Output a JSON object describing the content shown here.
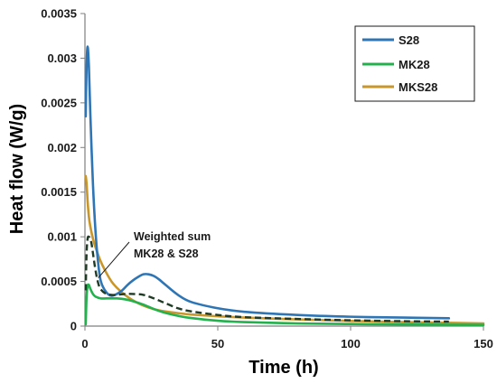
{
  "chart_data": {
    "type": "line",
    "xlabel": "Time (h)",
    "ylabel": "Heat flow (W/g)",
    "xlim": [
      0,
      150
    ],
    "ylim": [
      0,
      0.0035
    ],
    "x_ticks": [
      0,
      50,
      100,
      150
    ],
    "y_ticks": [
      0,
      0.0005,
      0.001,
      0.0015,
      0.002,
      0.0025,
      0.003,
      0.0035
    ],
    "x_tick_labels": [
      "0",
      "50",
      "100",
      "150"
    ],
    "y_tick_labels": [
      "0",
      "0.0005",
      "0.001",
      "0.0015",
      "0.002",
      "0.0025",
      "0.003",
      "0.0035"
    ],
    "grid": false,
    "legend_position": "top-right",
    "series": [
      {
        "name": "S28",
        "color": "#2e75b6",
        "dash": "solid",
        "x": [
          0.3,
          0.6,
          1,
          1.5,
          2,
          3,
          4,
          5,
          6,
          8,
          10,
          12,
          14,
          16,
          18,
          20,
          22,
          24,
          26,
          28,
          30,
          35,
          40,
          50,
          60,
          80,
          100,
          120,
          137
        ],
        "y": [
          0.00235,
          0.0029,
          0.00313,
          0.0029,
          0.0024,
          0.0016,
          0.00105,
          0.0007,
          0.0005,
          0.00038,
          0.00034,
          0.00036,
          0.0004,
          0.00046,
          0.00051,
          0.00055,
          0.00058,
          0.00058,
          0.00056,
          0.00052,
          0.00047,
          0.00035,
          0.00027,
          0.0002,
          0.00016,
          0.000125,
          0.000105,
          9.5e-05,
          8.8e-05
        ]
      },
      {
        "name": "MK28",
        "color": "#22b14c",
        "dash": "solid",
        "x": [
          0.3,
          0.6,
          1,
          1.5,
          2,
          3,
          4,
          6,
          8,
          10,
          12,
          15,
          18,
          22,
          26,
          30,
          35,
          40,
          50,
          60,
          80,
          100,
          120,
          150
        ],
        "y": [
          2e-05,
          0.00032,
          0.00045,
          0.00046,
          0.00042,
          0.00036,
          0.00033,
          0.00031,
          0.00031,
          0.00031,
          0.00031,
          0.0003,
          0.00028,
          0.00024,
          0.00019,
          0.00015,
          0.000115,
          9e-05,
          6e-05,
          4.5e-05,
          3e-05,
          2.3e-05,
          1.8e-05,
          1.3e-05
        ]
      },
      {
        "name": "MKS28",
        "color": "#c9962a",
        "dash": "solid",
        "x": [
          0.3,
          0.6,
          1,
          1.5,
          2,
          3,
          4,
          6,
          8,
          10,
          12,
          15,
          18,
          22,
          26,
          30,
          35,
          40,
          50,
          60,
          80,
          100,
          120,
          150
        ],
        "y": [
          0.00168,
          0.0016,
          0.0014,
          0.00122,
          0.00112,
          0.00098,
          0.00088,
          0.00072,
          0.0006,
          0.0005,
          0.00043,
          0.00035,
          0.00029,
          0.00023,
          0.00019,
          0.000165,
          0.000145,
          0.00013,
          0.00011,
          9.5e-05,
          7.5e-05,
          5.8e-05,
          4.5e-05,
          3e-05
        ]
      },
      {
        "name": "",
        "color": "#1f3a25",
        "dash": "dashed",
        "x": [
          0.3,
          0.6,
          1,
          1.5,
          2,
          2.5,
          3,
          4,
          5,
          6,
          8,
          10,
          12,
          15,
          18,
          22,
          26,
          30,
          35,
          40,
          50,
          60,
          80,
          100,
          120,
          137
        ],
        "y": [
          0.0004,
          0.0008,
          0.00098,
          0.001,
          0.00098,
          0.00092,
          0.00082,
          0.00062,
          0.00048,
          0.00041,
          0.00036,
          0.00035,
          0.00035,
          0.00036,
          0.00036,
          0.00035,
          0.00031,
          0.00026,
          0.0002,
          0.000165,
          0.000125,
          0.0001,
          8e-05,
          6.5e-05,
          5.5e-05,
          5e-05
        ]
      }
    ],
    "annotations": [
      {
        "lines": [
          "Weighted sum",
          "MK28 & S28"
        ],
        "arrow_target": [
          4,
          0.00052
        ]
      }
    ]
  }
}
